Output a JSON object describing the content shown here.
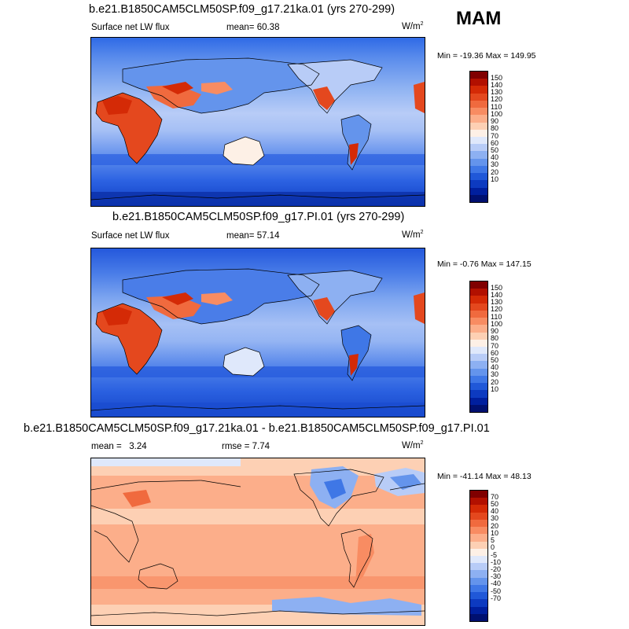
{
  "season": "MAM",
  "panels": [
    {
      "title": "b.e21.B1850CAM5CLM50SP.f09_g17.21ka.01 (yrs 270-299)",
      "left_label": "Surface net LW flux",
      "mid_label": "mean=",
      "mid_value": "60.38",
      "units": "W/m",
      "units_exp": "2",
      "minmax": "Min = -19.36 Max = 149.95"
    },
    {
      "title": "b.e21.B1850CAM5CLM50SP.f09_g17.PI.01 (yrs 270-299)",
      "left_label": "Surface net LW flux",
      "mid_label": "mean=",
      "mid_value": "57.14",
      "units": "W/m",
      "units_exp": "2",
      "minmax": "Min = -0.76 Max = 147.15"
    },
    {
      "title": "b.e21.B1850CAM5CLM50SP.f09_g17.21ka.01 - b.e21.B1850CAM5CLM50SP.f09_g17.PI.01",
      "left_label": "mean =   3.24",
      "mid_label": "rmse =",
      "mid_value": "7.74",
      "units": "W/m",
      "units_exp": "2",
      "minmax": "Min = -41.14 Max = 48.13"
    }
  ],
  "colorbar_abs": {
    "labels": [
      "150",
      "140",
      "130",
      "120",
      "110",
      "100",
      "90",
      "80",
      "70",
      "60",
      "50",
      "40",
      "30",
      "20",
      "10"
    ],
    "colors": [
      "#800000",
      "#b21000",
      "#d42a06",
      "#e4481e",
      "#f06a3e",
      "#f88c62",
      "#fcae8a",
      "#fdd0b4",
      "#fdf0e6",
      "#dfe8fb",
      "#b8ccf7",
      "#8db0f2",
      "#6494ec",
      "#3f77e6",
      "#2058d8",
      "#0d3ac0",
      "#001f9e",
      "#001070"
    ]
  },
  "colorbar_diff": {
    "labels": [
      "70",
      "50",
      "40",
      "30",
      "20",
      "10",
      "5",
      "0",
      "-5",
      "-10",
      "-20",
      "-30",
      "-40",
      "-50",
      "-70"
    ],
    "colors": [
      "#800000",
      "#b21000",
      "#d42a06",
      "#e4481e",
      "#f06a3e",
      "#f88c62",
      "#fcae8a",
      "#fdd0b4",
      "#fdf0e6",
      "#dfe8fb",
      "#b8ccf7",
      "#8db0f2",
      "#6494ec",
      "#3f77e6",
      "#2058d8",
      "#0d3ac0",
      "#001f9e",
      "#001070"
    ]
  }
}
